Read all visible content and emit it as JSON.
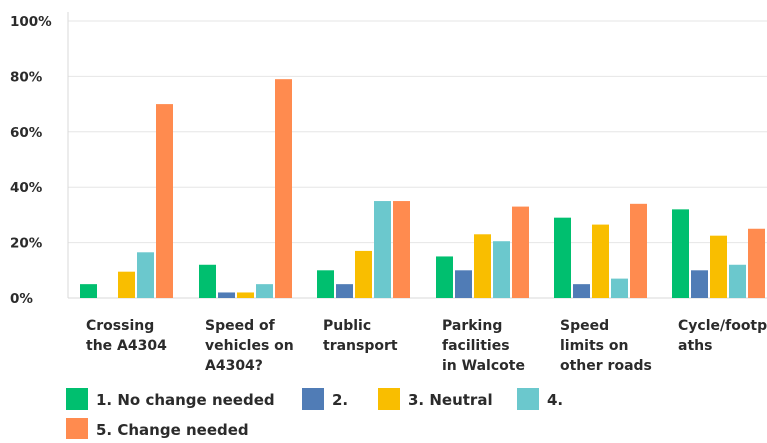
{
  "chart_data": {
    "type": "bar",
    "categories": [
      [
        "Crossing",
        "the A4304"
      ],
      [
        "Speed of",
        "vehicles on",
        "A4304?"
      ],
      [
        "Public",
        "transport"
      ],
      [
        "Parking",
        "facilities",
        "in Walcote"
      ],
      [
        "Speed",
        "limits on",
        "other roads"
      ],
      [
        "Cycle/footp",
        "aths"
      ]
    ],
    "series": [
      {
        "name": "1. No change needed",
        "color": "#00BF6F",
        "values": [
          5,
          12,
          10,
          15,
          29,
          32
        ]
      },
      {
        "name": "2.",
        "color": "#507CB6",
        "values": [
          0,
          2,
          5,
          10,
          5,
          10
        ]
      },
      {
        "name": "3. Neutral",
        "color": "#F9BE00",
        "values": [
          9.5,
          2,
          17,
          23,
          26.5,
          22.5
        ]
      },
      {
        "name": "4.",
        "color": "#6BC8CD",
        "values": [
          16.5,
          5,
          35,
          20.5,
          7,
          12
        ]
      },
      {
        "name": "5. Change needed",
        "color": "#FF8B4F",
        "values": [
          70,
          79,
          35,
          33,
          34,
          25
        ]
      }
    ],
    "ylim": [
      0,
      100
    ],
    "yticks": [
      "0%",
      "20%",
      "40%",
      "60%",
      "80%",
      "100%"
    ],
    "ytick_values": [
      0,
      20,
      40,
      60,
      80,
      100
    ],
    "grid": true,
    "legend_position": "bottom-left",
    "title": "",
    "xlabel": "",
    "ylabel": ""
  }
}
